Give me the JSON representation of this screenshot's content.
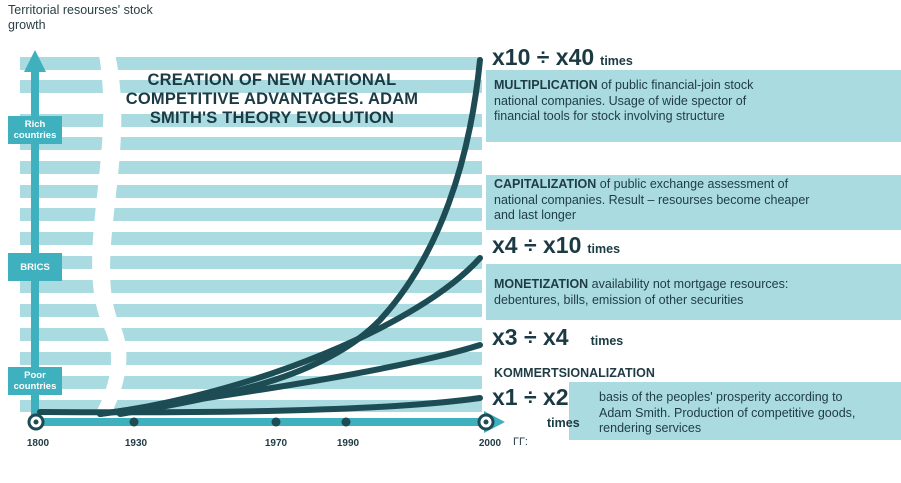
{
  "y_axis_label": "Territorial resourses' stock growth",
  "title": "CREATION OF NEW NATIONAL COMPETITIVE ADVANTAGES. ADAM SMITH'S THEORY EVOLUTION",
  "y_levels": [
    "Rich countries",
    "BRICS",
    "Poor countries"
  ],
  "x_years": [
    "1800",
    "1930",
    "1970",
    "1990",
    "2000"
  ],
  "x_unit": "ГГ:",
  "multipliers": [
    {
      "value": "x10 ÷ x40",
      "unit": "times"
    },
    {
      "value": "x4 ÷ x10",
      "unit": "times"
    },
    {
      "value": "x3 ÷ x4",
      "unit": "times"
    },
    {
      "value": "x1 ÷ x2",
      "unit": "times"
    }
  ],
  "stages": [
    {
      "heading": "MULTIPLICATION",
      "text": " of public financial-join stock national companies. Usage  of wide spector of financial tools for stock involving structure"
    },
    {
      "heading": "CAPITALIZATION",
      "text": " of public exchange assessment of national companies. Result – resourses become cheaper and last longer"
    },
    {
      "heading": "MONETIZATION",
      "text": " availability not mortgage resources: debentures, bills, emission of other securities"
    },
    {
      "heading": "KOMMERTSIONALIZATION",
      "text": "basis of the peoples' prosperity according to Adam Smith. Production of competitive goods, rendering services"
    }
  ],
  "colors": {
    "teal": "#3fb0bd",
    "stripe": "#a9dbe0",
    "curve": "#1d4c55",
    "text": "#1f3b44"
  }
}
